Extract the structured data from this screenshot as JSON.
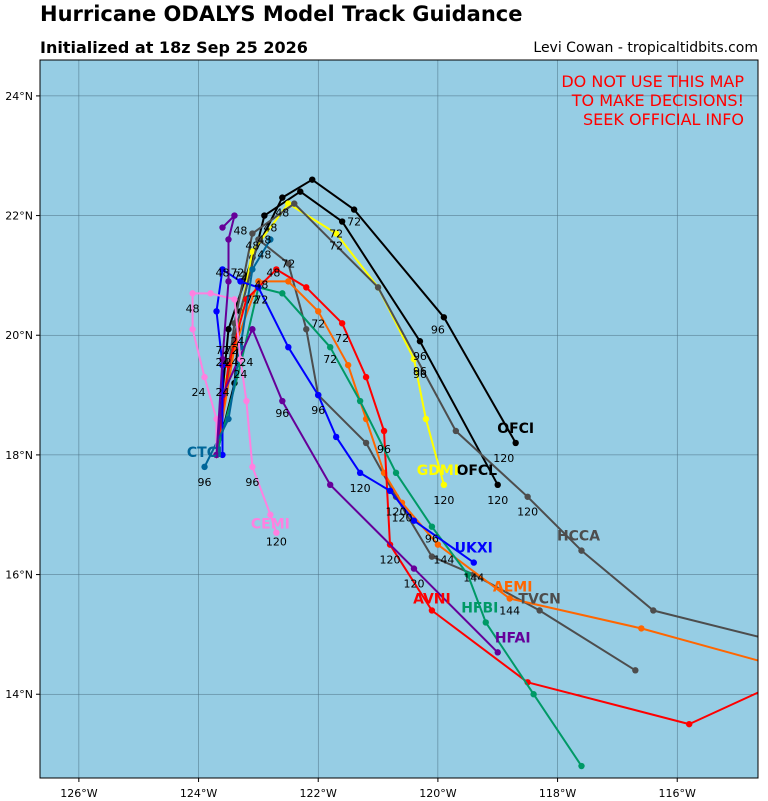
{
  "header": {
    "title": "Hurricane ODALYS Model Track Guidance",
    "subtitle": "Initialized at 18z Sep 25 2026",
    "credit": "Levi Cowan - tropicaltidbits.com"
  },
  "warning": [
    "DO NOT USE THIS MAP",
    "TO MAKE DECISIONS!",
    "SEEK OFFICIAL INFO"
  ],
  "colors": {
    "ocean": "#96cde4",
    "warning": "#ff0000",
    "grid": "#4a6f82"
  },
  "map_extent": {
    "lon": [
      -126.65,
      -114.65
    ],
    "lat": [
      12.6,
      24.6
    ]
  },
  "axes": {
    "lon_ticks": [
      {
        "value": -126,
        "label": "126°W"
      },
      {
        "value": -124,
        "label": "124°W"
      },
      {
        "value": -122,
        "label": "122°W"
      },
      {
        "value": -120,
        "label": "120°W"
      },
      {
        "value": -118,
        "label": "118°W"
      },
      {
        "value": -116,
        "label": "116°W"
      }
    ],
    "lat_ticks": [
      {
        "value": 14,
        "label": "14°N"
      },
      {
        "value": 16,
        "label": "16°N"
      },
      {
        "value": 18,
        "label": "18°N"
      },
      {
        "value": 20,
        "label": "20°N"
      },
      {
        "value": 22,
        "label": "22°N"
      },
      {
        "value": 24,
        "label": "24°N"
      }
    ]
  },
  "models": [
    {
      "name": "OFCI",
      "color": "#000000",
      "track": [
        [
          -123.7,
          18.0
        ],
        [
          -123.5,
          20.1
        ],
        [
          -123.1,
          21.3
        ],
        [
          -122.6,
          22.3
        ],
        [
          -122.1,
          22.6
        ],
        [
          -121.4,
          22.1
        ],
        [
          -119.9,
          20.3
        ],
        [
          -118.7,
          18.2
        ]
      ],
      "labels": [
        {
          "text": "72",
          "lon": -121.4,
          "lat": 21.9
        },
        {
          "text": "96",
          "lon": -120.0,
          "lat": 20.1
        },
        {
          "text": "120",
          "lon": -118.9,
          "lat": 17.95
        }
      ],
      "name_pos": [
        -118.7,
        18.45
      ],
      "name_size": 14
    },
    {
      "name": "OFCL",
      "color": "#000000",
      "track": [
        [
          -123.7,
          18.0
        ],
        [
          -123.4,
          19.2
        ],
        [
          -123.3,
          20.4
        ],
        [
          -122.9,
          22.0
        ],
        [
          -122.3,
          22.4
        ],
        [
          -121.6,
          21.9
        ],
        [
          -120.3,
          19.9
        ],
        [
          -119.0,
          17.5
        ]
      ],
      "labels": [
        {
          "text": "48",
          "lon": -122.6,
          "lat": 22.05
        },
        {
          "text": "72",
          "lon": -121.7,
          "lat": 21.7
        },
        {
          "text": "96",
          "lon": -120.3,
          "lat": 19.65
        },
        {
          "text": "120",
          "lon": -119.0,
          "lat": 17.25
        }
      ],
      "name_pos": [
        -119.35,
        17.75
      ],
      "name_size": 14
    },
    {
      "name": "GDMI",
      "color": "#ffff00",
      "track": [
        [
          -123.7,
          18.0
        ],
        [
          -123.5,
          19.3
        ],
        [
          -123.1,
          21.4
        ],
        [
          -122.5,
          22.2
        ],
        [
          -121.7,
          21.7
        ],
        [
          -121.0,
          20.8
        ],
        [
          -120.4,
          19.6
        ],
        [
          -120.2,
          18.6
        ],
        [
          -119.9,
          17.5
        ]
      ],
      "labels": [
        {
          "text": "72",
          "lon": -121.7,
          "lat": 21.5
        },
        {
          "text": "96",
          "lon": -120.3,
          "lat": 19.4
        },
        {
          "text": "120",
          "lon": -119.9,
          "lat": 17.25
        }
      ],
      "name_pos": [
        -120.0,
        17.75
      ],
      "name_size": 14
    },
    {
      "name": "HCCA",
      "color": "#4d4d4d",
      "track": [
        [
          -123.7,
          18.0
        ],
        [
          -123.4,
          20.2
        ],
        [
          -123.1,
          21.7
        ],
        [
          -122.4,
          22.2
        ],
        [
          -121.0,
          20.8
        ],
        [
          -119.7,
          18.4
        ],
        [
          -118.5,
          17.3
        ],
        [
          -117.6,
          16.4
        ],
        [
          -116.4,
          15.4
        ],
        [
          -114.6,
          14.95
        ]
      ],
      "labels": [
        {
          "text": "120",
          "lon": -118.5,
          "lat": 17.05
        },
        {
          "text": "96",
          "lon": -120.3,
          "lat": 19.35
        }
      ],
      "name_pos": [
        -117.65,
        16.65
      ],
      "name_size": 14
    },
    {
      "name": "TVCN",
      "color": "#4d4d4d",
      "track": [
        [
          -123.7,
          18.0
        ],
        [
          -123.4,
          20.0
        ],
        [
          -123.0,
          21.6
        ],
        [
          -122.5,
          21.2
        ],
        [
          -122.2,
          20.1
        ],
        [
          -122.0,
          19.0
        ],
        [
          -121.2,
          18.2
        ],
        [
          -120.7,
          17.3
        ],
        [
          -120.1,
          16.3
        ],
        [
          -119.4,
          16.0
        ],
        [
          -118.3,
          15.4
        ],
        [
          -116.7,
          14.4
        ]
      ],
      "labels": [
        {
          "text": "96",
          "lon": -120.9,
          "lat": 18.1
        },
        {
          "text": "120",
          "lon": -120.7,
          "lat": 17.05
        },
        {
          "text": "144",
          "lon": -118.8,
          "lat": 15.4
        }
      ],
      "name_pos": [
        -118.3,
        15.6
      ],
      "name_size": 14
    },
    {
      "name": "AEMI",
      "color": "#ff6600",
      "track": [
        [
          -123.7,
          18.0
        ],
        [
          -123.4,
          19.8
        ],
        [
          -123.0,
          20.9
        ],
        [
          -122.5,
          20.9
        ],
        [
          -122.0,
          20.4
        ],
        [
          -121.5,
          19.5
        ],
        [
          -121.2,
          18.6
        ],
        [
          -120.9,
          17.7
        ],
        [
          -120.6,
          17.2
        ],
        [
          -120.0,
          16.5
        ],
        [
          -118.8,
          15.6
        ],
        [
          -116.6,
          15.1
        ],
        [
          -114.6,
          14.55
        ]
      ],
      "labels": [
        {
          "text": "72",
          "lon": -122.0,
          "lat": 20.2
        },
        {
          "text": "120",
          "lon": -120.6,
          "lat": 16.95
        },
        {
          "text": "144",
          "lon": -119.9,
          "lat": 16.25
        }
      ],
      "name_pos": [
        -118.75,
        15.8
      ],
      "name_size": 14
    },
    {
      "name": "AVNI",
      "color": "#ff0000",
      "track": [
        [
          -123.7,
          18.0
        ],
        [
          -123.5,
          19.5
        ],
        [
          -123.2,
          20.6
        ],
        [
          -122.7,
          21.1
        ],
        [
          -122.2,
          20.8
        ],
        [
          -121.6,
          20.2
        ],
        [
          -121.2,
          19.3
        ],
        [
          -120.9,
          18.4
        ],
        [
          -120.8,
          16.5
        ],
        [
          -120.1,
          15.4
        ],
        [
          -118.5,
          14.2
        ],
        [
          -115.8,
          13.5
        ],
        [
          -114.6,
          14.05
        ]
      ],
      "labels": [
        {
          "text": "72",
          "lon": -121.6,
          "lat": 19.95
        },
        {
          "text": "120",
          "lon": -120.8,
          "lat": 16.25
        }
      ],
      "name_pos": [
        -120.1,
        15.6
      ],
      "name_size": 14
    },
    {
      "name": "HFBI",
      "color": "#009966",
      "track": [
        [
          -123.7,
          18.0
        ],
        [
          -123.3,
          19.5
        ],
        [
          -123.0,
          20.8
        ],
        [
          -122.6,
          20.7
        ],
        [
          -121.8,
          19.8
        ],
        [
          -121.3,
          18.9
        ],
        [
          -120.7,
          17.7
        ],
        [
          -120.1,
          16.8
        ],
        [
          -119.5,
          16.0
        ],
        [
          -119.2,
          15.2
        ],
        [
          -118.4,
          14.0
        ],
        [
          -117.6,
          12.8
        ]
      ],
      "labels": [
        {
          "text": "72",
          "lon": -121.8,
          "lat": 19.6
        },
        {
          "text": "96",
          "lon": -120.1,
          "lat": 16.6
        }
      ],
      "name_pos": [
        -119.3,
        15.45
      ],
      "name_size": 14
    },
    {
      "name": "HFAI",
      "color": "#660099",
      "track": [
        [
          -123.7,
          18.0
        ],
        [
          -123.6,
          19.0
        ],
        [
          -123.1,
          20.1
        ],
        [
          -122.6,
          18.9
        ],
        [
          -121.8,
          17.5
        ],
        [
          -120.4,
          16.1
        ],
        [
          -119.0,
          14.7
        ]
      ],
      "labels": [
        {
          "text": "96",
          "lon": -122.6,
          "lat": 18.7
        },
        {
          "text": "120",
          "lon": -120.4,
          "lat": 15.85
        }
      ],
      "name_pos": [
        -118.75,
        14.95
      ],
      "name_size": 14
    },
    {
      "name": "UKXI",
      "color": "#0000ff",
      "track": [
        [
          -123.6,
          18.0
        ],
        [
          -123.6,
          19.5
        ],
        [
          -123.7,
          20.4
        ],
        [
          -123.6,
          21.1
        ],
        [
          -123.3,
          20.9
        ],
        [
          -123.0,
          20.8
        ],
        [
          -122.5,
          19.8
        ],
        [
          -122.0,
          19.0
        ],
        [
          -121.7,
          18.3
        ],
        [
          -121.3,
          17.7
        ],
        [
          -120.8,
          17.4
        ],
        [
          -120.4,
          16.9
        ],
        [
          -119.4,
          16.2
        ]
      ],
      "labels": [
        {
          "text": "72",
          "lon": -123.3,
          "lat": 21.0
        },
        {
          "text": "96",
          "lon": -122.0,
          "lat": 18.75
        },
        {
          "text": "120",
          "lon": -121.3,
          "lat": 17.45
        },
        {
          "text": "144",
          "lon": -119.4,
          "lat": 15.95
        }
      ],
      "name_pos": [
        -119.4,
        16.45
      ],
      "name_size": 14
    },
    {
      "name": "CTCI",
      "color": "#006699",
      "track": [
        [
          -123.9,
          17.8
        ],
        [
          -123.5,
          18.6
        ],
        [
          -123.3,
          19.8
        ],
        [
          -123.1,
          21.1
        ],
        [
          -122.8,
          21.6
        ]
      ],
      "labels": [
        {
          "text": "96",
          "lon": -123.9,
          "lat": 17.55
        },
        {
          "text": "48",
          "lon": -122.9,
          "lat": 21.35
        }
      ],
      "name_pos": [
        -123.9,
        18.05
      ],
      "name_size": 14
    },
    {
      "name": "CEMI",
      "color": "#ff80e0",
      "track": [
        [
          -123.7,
          18.0
        ],
        [
          -123.7,
          18.6
        ],
        [
          -123.9,
          19.3
        ],
        [
          -124.1,
          20.1
        ],
        [
          -124.1,
          20.7
        ],
        [
          -123.8,
          20.7
        ],
        [
          -123.4,
          20.6
        ],
        [
          -123.3,
          19.6
        ],
        [
          -123.2,
          18.9
        ],
        [
          -123.1,
          17.8
        ],
        [
          -122.8,
          17.0
        ],
        [
          -122.7,
          16.7
        ]
      ],
      "labels": [
        {
          "text": "48",
          "lon": -124.1,
          "lat": 20.45
        },
        {
          "text": "24",
          "lon": -124.0,
          "lat": 19.05
        },
        {
          "text": "96",
          "lon": -123.1,
          "lat": 17.55
        },
        {
          "text": "120",
          "lon": -122.7,
          "lat": 16.55
        }
      ],
      "name_pos": [
        -122.8,
        16.85
      ],
      "name_size": 14
    },
    {
      "name": "",
      "color": "#660099",
      "track": [
        [
          -123.7,
          18.0
        ],
        [
          -123.6,
          19.6
        ],
        [
          -123.5,
          20.9
        ],
        [
          -123.5,
          21.6
        ],
        [
          -123.4,
          22.0
        ],
        [
          -123.6,
          21.8
        ]
      ],
      "labels": [
        {
          "text": "48",
          "lon": -123.3,
          "lat": 21.75
        }
      ],
      "name_pos": null,
      "name_size": 14
    }
  ],
  "cluster_labels": [
    {
      "text": "48",
      "lon": -123.6,
      "lat": 21.05
    },
    {
      "text": "72",
      "lon": -123.35,
      "lat": 21.05
    },
    {
      "text": "48",
      "lon": -123.1,
      "lat": 21.5
    },
    {
      "text": "48",
      "lon": -122.9,
      "lat": 21.6
    },
    {
      "text": "48",
      "lon": -122.8,
      "lat": 21.8
    },
    {
      "text": "72",
      "lon": -122.5,
      "lat": 21.2
    },
    {
      "text": "48",
      "lon": -122.75,
      "lat": 21.05
    },
    {
      "text": "48",
      "lon": -122.95,
      "lat": 20.85
    },
    {
      "text": "72",
      "lon": -122.95,
      "lat": 20.6
    },
    {
      "text": "72",
      "lon": -123.1,
      "lat": 20.6
    },
    {
      "text": "24",
      "lon": -123.35,
      "lat": 19.9
    },
    {
      "text": "72",
      "lon": -123.6,
      "lat": 19.75
    },
    {
      "text": "72",
      "lon": -123.45,
      "lat": 19.75
    },
    {
      "text": "24",
      "lon": -123.6,
      "lat": 19.55
    },
    {
      "text": "24",
      "lon": -123.45,
      "lat": 19.55
    },
    {
      "text": "24",
      "lon": -123.2,
      "lat": 19.55
    },
    {
      "text": "24",
      "lon": -123.3,
      "lat": 19.35
    },
    {
      "text": "24",
      "lon": -123.6,
      "lat": 19.05
    }
  ]
}
